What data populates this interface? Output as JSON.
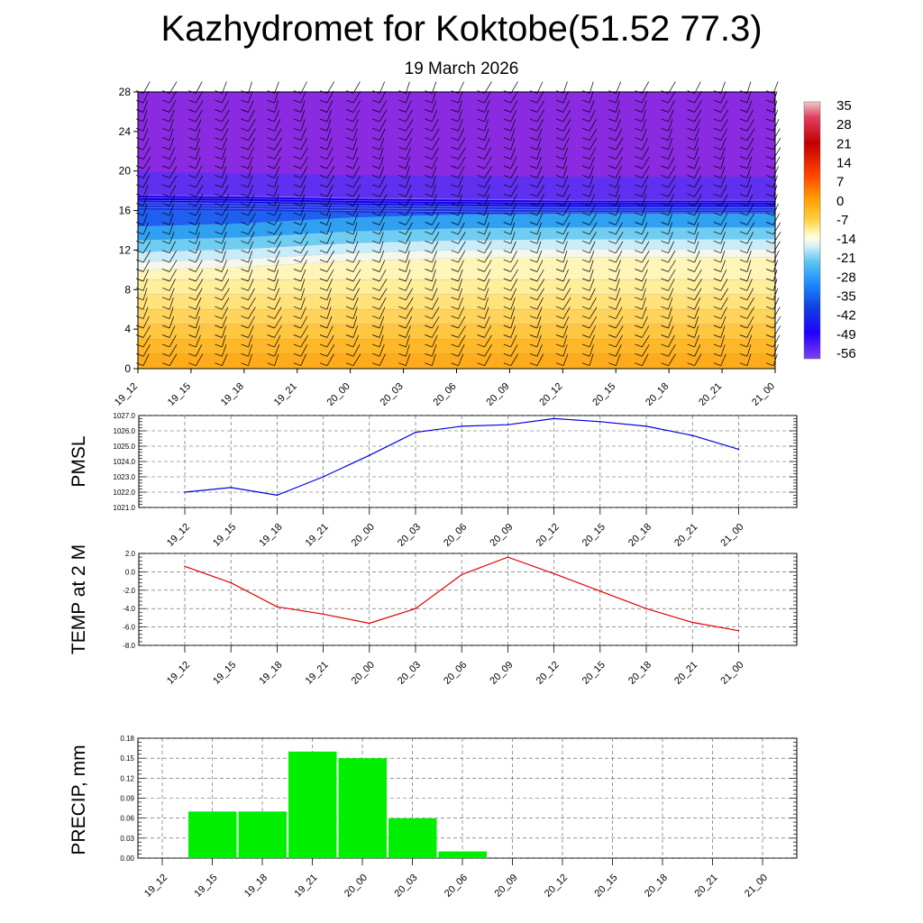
{
  "title": "Kazhydromet for Koktobe(51.52 77.3)",
  "subtitle": "19 March 2026",
  "colors": {
    "pmsl_line": "#0000dd",
    "temp_line": "#e00000",
    "precip_bar": "#00ee00",
    "grid": "#555555"
  },
  "chart_data": [
    {
      "type": "heatmap",
      "id": "cross-section",
      "x_ticks": [
        "19_12",
        "19_15",
        "19_18",
        "19_21",
        "20_00",
        "20_03",
        "20_06",
        "20_09",
        "20_12",
        "20_15",
        "20_18",
        "20_21",
        "21_00"
      ],
      "y_ticks": [
        "0",
        "4",
        "8",
        "12",
        "16",
        "20",
        "24",
        "28"
      ],
      "ylim": [
        0,
        28
      ],
      "colorbar_labels": [
        "35",
        "28",
        "21",
        "14",
        "7",
        "0",
        "-7",
        "-14",
        "-21",
        "-28",
        "-35",
        "-42",
        "-49",
        "-56"
      ],
      "band_boundaries": [
        {
          "time": "19_12",
          "warm_top": 10.0,
          "cold_core_top": 17.5
        },
        {
          "time": "19_18",
          "warm_top": 10.3,
          "cold_core_top": 17.4
        },
        {
          "time": "20_00",
          "warm_top": 10.9,
          "cold_core_top": 17.2
        },
        {
          "time": "20_06",
          "warm_top": 11.2,
          "cold_core_top": 17.1
        },
        {
          "time": "20_12",
          "warm_top": 11.3,
          "cold_core_top": 17.0
        },
        {
          "time": "20_18",
          "warm_top": 11.3,
          "cold_core_top": 17.0
        },
        {
          "time": "21_00",
          "warm_top": 11.3,
          "cold_core_top": 17.0
        }
      ]
    },
    {
      "type": "line",
      "id": "pmsl",
      "ylabel": "PMSL",
      "categories": [
        "19_12",
        "19_15",
        "19_18",
        "19_21",
        "20_00",
        "20_03",
        "20_06",
        "20_09",
        "20_12",
        "20_15",
        "20_18",
        "20_21",
        "21_00"
      ],
      "values": [
        1022.0,
        1022.3,
        1021.8,
        1023.0,
        1024.4,
        1025.9,
        1026.3,
        1026.4,
        1026.8,
        1026.6,
        1026.3,
        1025.7,
        1024.8
      ],
      "ylim": [
        1021.0,
        1027.0
      ],
      "y_ticks": [
        "1021.0",
        "1022.0",
        "1023.0",
        "1024.0",
        "1025.0",
        "1026.0",
        "1027.0"
      ],
      "grid": true
    },
    {
      "type": "line",
      "id": "temp",
      "ylabel": "TEMP at 2 M",
      "categories": [
        "19_12",
        "19_15",
        "19_18",
        "19_21",
        "20_00",
        "20_03",
        "20_06",
        "20_09",
        "20_12",
        "20_15",
        "20_18",
        "20_21",
        "21_00"
      ],
      "values": [
        0.6,
        -1.2,
        -3.8,
        -4.6,
        -5.6,
        -4.0,
        -0.3,
        1.6,
        -0.2,
        -2.1,
        -4.0,
        -5.5,
        -6.4
      ],
      "ylim": [
        -8.0,
        2.0
      ],
      "y_ticks": [
        "-8.0",
        "-6.0",
        "-4.0",
        "-2.0",
        "0.0",
        "2.0"
      ],
      "grid": true
    },
    {
      "type": "bar",
      "id": "precip",
      "ylabel": "PRECIP, mm",
      "categories": [
        "19_12",
        "19_15",
        "19_18",
        "19_21",
        "20_00",
        "20_03",
        "20_06",
        "20_09",
        "20_12",
        "20_15",
        "20_18",
        "20_21",
        "21_00"
      ],
      "values": [
        0,
        0.07,
        0.07,
        0.16,
        0.15,
        0.06,
        0.01,
        0,
        0,
        0,
        0,
        0,
        0
      ],
      "ylim": [
        0,
        0.18
      ],
      "y_ticks": [
        "0.00",
        "0.03",
        "0.06",
        "0.09",
        "0.12",
        "0.15",
        "0.18"
      ],
      "grid": true
    }
  ]
}
